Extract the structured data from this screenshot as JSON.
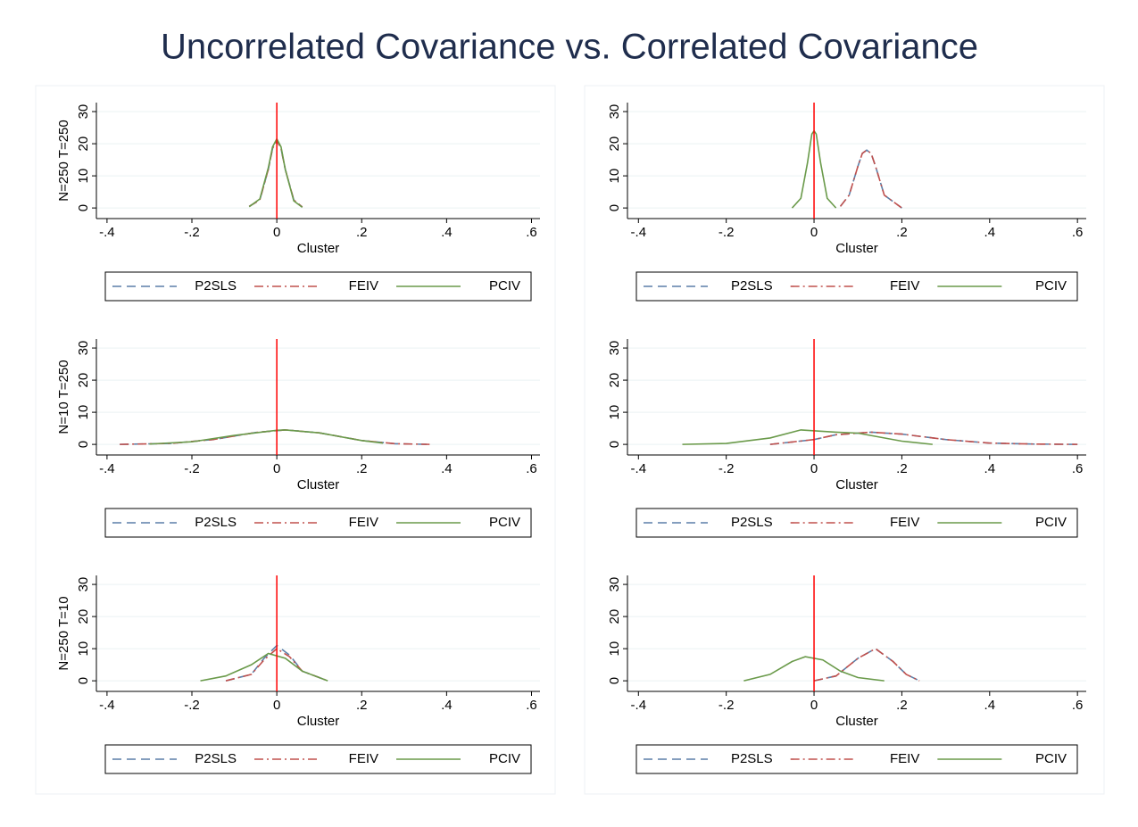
{
  "title": "Uncorrelated Covariance vs. Correlated Covariance",
  "chart_data": [
    {
      "type": "line",
      "ylabel": "N=250 T=250",
      "xlabel": "Cluster",
      "xlim": [
        -0.425,
        0.62
      ],
      "ylim": [
        -3.3,
        32.8
      ],
      "xticks": [
        {
          "value": -0.4,
          "label": "-.4"
        },
        {
          "value": -0.2,
          "label": "-.2"
        },
        0,
        {
          "value": 0.2,
          "label": ".2"
        },
        {
          "value": 0.4,
          "label": ".4"
        },
        {
          "value": 0.6,
          "label": ".6"
        }
      ],
      "yticks": [
        0,
        10,
        20,
        30
      ],
      "grid": true,
      "xline": 0,
      "xline_color": "#ff0000",
      "series": [
        {
          "name": "P2SLS",
          "color": "#5b7fa8",
          "dash": "10,6",
          "x": [
            -0.065,
            -0.04,
            -0.02,
            -0.01,
            0,
            0.01,
            0.02,
            0.04,
            0.06
          ],
          "values": [
            0.5,
            2.5,
            12,
            18.5,
            21,
            18.5,
            12,
            2.5,
            0.3
          ]
        },
        {
          "name": "FEIV",
          "color": "#c0504d",
          "dash": "10,4,2,4",
          "x": [
            -0.065,
            -0.04,
            -0.02,
            -0.01,
            0,
            0.01,
            0.02,
            0.04,
            0.06
          ],
          "values": [
            0.5,
            2.5,
            12,
            18.5,
            21,
            18.5,
            12,
            2.5,
            0.3
          ]
        },
        {
          "name": "PCIV",
          "color": "#6a9a4a",
          "dash": "none",
          "x": [
            -0.065,
            -0.04,
            -0.02,
            -0.01,
            0,
            0.01,
            0.02,
            0.04,
            0.06
          ],
          "values": [
            0.4,
            2.8,
            12.5,
            19,
            21.5,
            19,
            12,
            2.2,
            0.2
          ]
        }
      ]
    },
    {
      "type": "line",
      "xlabel": "Cluster",
      "xlim": [
        -0.425,
        0.62
      ],
      "ylim": [
        -3.3,
        32.8
      ],
      "xticks": [
        {
          "value": -0.4,
          "label": "-.4"
        },
        {
          "value": -0.2,
          "label": "-.2"
        },
        0,
        {
          "value": 0.2,
          "label": ".2"
        },
        {
          "value": 0.4,
          "label": ".4"
        },
        {
          "value": 0.6,
          "label": ".6"
        }
      ],
      "yticks": [
        0,
        10,
        20,
        30
      ],
      "grid": true,
      "xline": 0,
      "xline_color": "#ff0000",
      "series": [
        {
          "name": "P2SLS",
          "color": "#5b7fa8",
          "dash": "10,6",
          "x": [
            0.06,
            0.08,
            0.1,
            0.11,
            0.12,
            0.13,
            0.14,
            0.16,
            0.2
          ],
          "values": [
            0.5,
            4,
            13,
            17,
            18,
            17,
            13,
            4,
            0
          ]
        },
        {
          "name": "FEIV",
          "color": "#c0504d",
          "dash": "10,4,2,4",
          "x": [
            0.06,
            0.08,
            0.1,
            0.11,
            0.12,
            0.13,
            0.14,
            0.16,
            0.2
          ],
          "values": [
            0.5,
            4,
            13,
            17,
            18,
            17,
            13,
            4,
            0
          ]
        },
        {
          "name": "PCIV",
          "color": "#6a9a4a",
          "dash": "none",
          "x": [
            -0.05,
            -0.03,
            -0.015,
            -0.005,
            0,
            0.005,
            0.015,
            0.03,
            0.05
          ],
          "values": [
            0,
            3,
            14,
            23,
            24,
            23,
            14,
            3,
            0
          ]
        }
      ]
    },
    {
      "type": "line",
      "ylabel": "N=10 T=250",
      "xlabel": "Cluster",
      "xlim": [
        -0.425,
        0.62
      ],
      "ylim": [
        -3.3,
        32.8
      ],
      "xticks": [
        {
          "value": -0.4,
          "label": "-.4"
        },
        {
          "value": -0.2,
          "label": "-.2"
        },
        0,
        {
          "value": 0.2,
          "label": ".2"
        },
        {
          "value": 0.4,
          "label": ".4"
        },
        {
          "value": 0.6,
          "label": ".6"
        }
      ],
      "yticks": [
        0,
        10,
        20,
        30
      ],
      "grid": true,
      "xline": 0,
      "xline_color": "#ff0000",
      "series": [
        {
          "name": "P2SLS",
          "color": "#5b7fa8",
          "dash": "10,6",
          "x": [
            -0.37,
            -0.25,
            -0.15,
            -0.05,
            0.02,
            0.1,
            0.2,
            0.28,
            0.36
          ],
          "values": [
            0,
            0.3,
            1.5,
            3.7,
            4.5,
            3.6,
            1.2,
            0.2,
            0
          ]
        },
        {
          "name": "FEIV",
          "color": "#c0504d",
          "dash": "10,4,2,4",
          "x": [
            -0.37,
            -0.25,
            -0.15,
            -0.05,
            0.02,
            0.1,
            0.2,
            0.28,
            0.36
          ],
          "values": [
            0,
            0.3,
            1.5,
            3.7,
            4.5,
            3.6,
            1.2,
            0.2,
            0
          ]
        },
        {
          "name": "PCIV",
          "color": "#6a9a4a",
          "dash": "none",
          "x": [
            -0.3,
            -0.2,
            -0.1,
            0,
            0.02,
            0.1,
            0.2,
            0.25
          ],
          "values": [
            0.1,
            0.8,
            2.8,
            4.4,
            4.5,
            3.6,
            1.2,
            0.4
          ]
        }
      ]
    },
    {
      "type": "line",
      "xlabel": "Cluster",
      "xlim": [
        -0.425,
        0.62
      ],
      "ylim": [
        -3.3,
        32.8
      ],
      "xticks": [
        {
          "value": -0.4,
          "label": "-.4"
        },
        {
          "value": -0.2,
          "label": "-.2"
        },
        0,
        {
          "value": 0.2,
          "label": ".2"
        },
        {
          "value": 0.4,
          "label": ".4"
        },
        {
          "value": 0.6,
          "label": ".6"
        }
      ],
      "yticks": [
        0,
        10,
        20,
        30
      ],
      "grid": true,
      "xline": 0,
      "xline_color": "#ff0000",
      "series": [
        {
          "name": "P2SLS",
          "color": "#5b7fa8",
          "dash": "10,6",
          "x": [
            -0.1,
            0,
            0.05,
            0.13,
            0.2,
            0.3,
            0.4,
            0.5,
            0.6
          ],
          "values": [
            0,
            1.5,
            3,
            3.8,
            3.2,
            1.5,
            0.4,
            0.1,
            0
          ]
        },
        {
          "name": "FEIV",
          "color": "#c0504d",
          "dash": "10,4,2,4",
          "x": [
            -0.1,
            0,
            0.05,
            0.13,
            0.2,
            0.3,
            0.4,
            0.5,
            0.6
          ],
          "values": [
            0,
            1.5,
            3,
            3.8,
            3.2,
            1.5,
            0.4,
            0.1,
            0
          ]
        },
        {
          "name": "PCIV",
          "color": "#6a9a4a",
          "dash": "none",
          "x": [
            -0.3,
            -0.2,
            -0.1,
            -0.03,
            0.05,
            0.1,
            0.2,
            0.27
          ],
          "values": [
            0,
            0.3,
            2,
            4.5,
            3.8,
            3.5,
            1,
            0
          ]
        }
      ]
    },
    {
      "type": "line",
      "ylabel": "N=250 T=10",
      "xlabel": "Cluster",
      "xlim": [
        -0.425,
        0.62
      ],
      "ylim": [
        -3.3,
        32.8
      ],
      "xticks": [
        {
          "value": -0.4,
          "label": "-.4"
        },
        {
          "value": -0.2,
          "label": "-.2"
        },
        0,
        {
          "value": 0.2,
          "label": ".2"
        },
        {
          "value": 0.4,
          "label": ".4"
        },
        {
          "value": 0.6,
          "label": ".6"
        }
      ],
      "yticks": [
        0,
        10,
        20,
        30
      ],
      "grid": true,
      "xline": 0,
      "xline_color": "#ff0000",
      "series": [
        {
          "name": "P2SLS",
          "color": "#5b7fa8",
          "dash": "10,6",
          "x": [
            -0.12,
            -0.06,
            -0.03,
            0,
            0.03,
            0.06,
            0.12
          ],
          "values": [
            0,
            2,
            7,
            11,
            8,
            3,
            0
          ]
        },
        {
          "name": "FEIV",
          "color": "#c0504d",
          "dash": "10,4,2,4",
          "x": [
            -0.12,
            -0.06,
            -0.03,
            0,
            0.03,
            0.06,
            0.12
          ],
          "values": [
            0,
            2,
            6.5,
            10,
            7.5,
            3,
            0
          ]
        },
        {
          "name": "PCIV",
          "color": "#6a9a4a",
          "dash": "none",
          "x": [
            -0.18,
            -0.12,
            -0.06,
            -0.02,
            0.02,
            0.06,
            0.12
          ],
          "values": [
            0,
            1.5,
            5,
            8.5,
            7,
            3,
            0
          ]
        }
      ]
    },
    {
      "type": "line",
      "xlabel": "Cluster",
      "xlim": [
        -0.425,
        0.62
      ],
      "ylim": [
        -3.3,
        32.8
      ],
      "xticks": [
        {
          "value": -0.4,
          "label": "-.4"
        },
        {
          "value": -0.2,
          "label": "-.2"
        },
        0,
        {
          "value": 0.2,
          "label": ".2"
        },
        {
          "value": 0.4,
          "label": ".4"
        },
        {
          "value": 0.6,
          "label": ".6"
        }
      ],
      "yticks": [
        0,
        10,
        20,
        30
      ],
      "grid": true,
      "xline": 0,
      "xline_color": "#ff0000",
      "series": [
        {
          "name": "P2SLS",
          "color": "#5b7fa8",
          "dash": "10,6",
          "x": [
            0,
            0.05,
            0.1,
            0.14,
            0.18,
            0.21,
            0.24
          ],
          "values": [
            0,
            1.5,
            7,
            10,
            6,
            2,
            0
          ]
        },
        {
          "name": "FEIV",
          "color": "#c0504d",
          "dash": "10,4,2,4",
          "x": [
            0,
            0.05,
            0.1,
            0.14,
            0.18,
            0.21,
            0.24
          ],
          "values": [
            0,
            1.5,
            7,
            10,
            6,
            2,
            0
          ]
        },
        {
          "name": "PCIV",
          "color": "#6a9a4a",
          "dash": "none",
          "x": [
            -0.16,
            -0.1,
            -0.05,
            -0.02,
            0.02,
            0.06,
            0.1,
            0.16
          ],
          "values": [
            0,
            2,
            6,
            7.5,
            6.5,
            3,
            1,
            0
          ]
        }
      ]
    }
  ]
}
